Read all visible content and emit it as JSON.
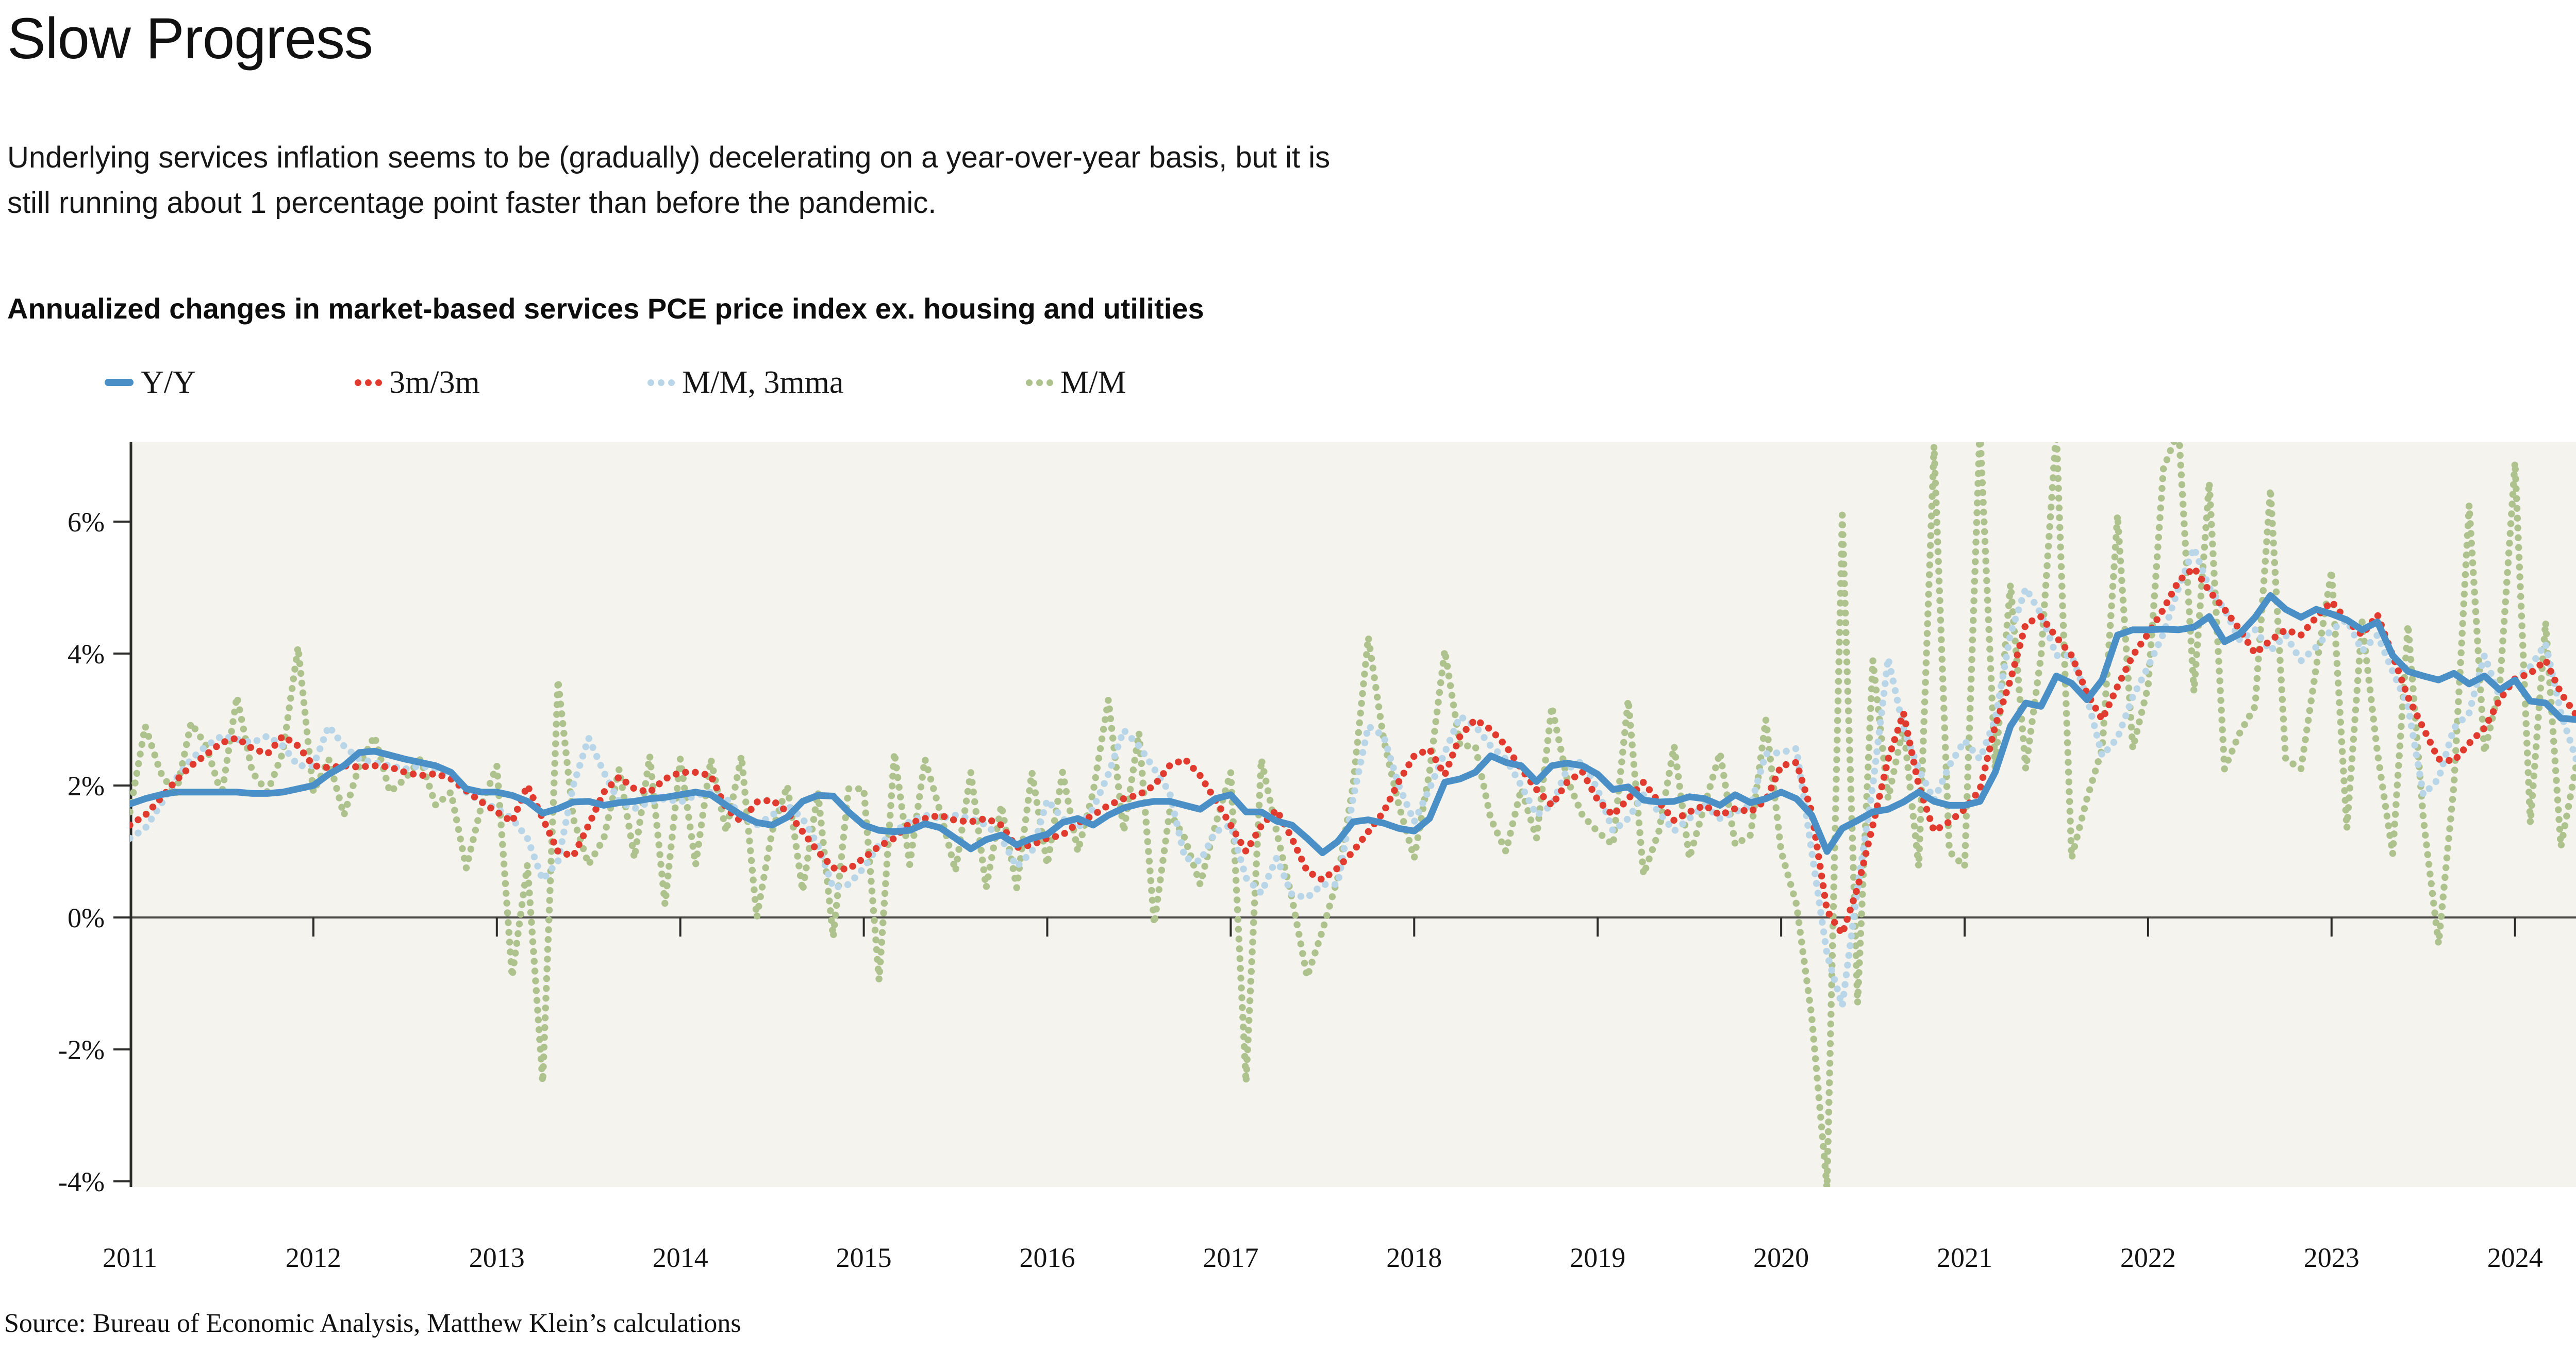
{
  "header": {
    "title": "Slow Progress",
    "subtitle_line1": "Underlying services inflation seems to be (gradually) decelerating on a year-over-year basis, but it is",
    "subtitle_line2": "still running about 1 percentage point faster than before the pandemic.",
    "chart_heading": "Annualized changes in market-based services PCE price index ex. housing and utilities"
  },
  "footer": {
    "source": "Source: Bureau of Economic Analysis, Matthew Klein’s calculations"
  },
  "colors": {
    "plot_background": "#f5f3ed",
    "axis": "#2b2b29",
    "zero_line": "#4a4a46",
    "yy_blue": "#4a90c6",
    "m3_red": "#e03b2e",
    "mm3mma_lightblue": "#b9d6e9",
    "mm_olive": "#aec28e"
  },
  "chart_data": {
    "type": "line",
    "title": "Annualized changes in market-based services PCE price index ex. housing and utilities",
    "x_start": "2011-01",
    "x_end": "2024-05",
    "months_per_point": 1,
    "x_tick_labels": [
      "2011",
      "2012",
      "2013",
      "2014",
      "2015",
      "2016",
      "2017",
      "2018",
      "2019",
      "2020",
      "2021",
      "2022",
      "2023",
      "2024"
    ],
    "y_tick_labels": [
      "6%",
      "4%",
      "2%",
      "0%",
      "-2%",
      "-4%"
    ],
    "y_tick_values": [
      6,
      4,
      2,
      0,
      -2,
      -4
    ],
    "ylim": [
      -4.09,
      7.2
    ],
    "grid": false,
    "legend_position": "top",
    "plot_bg": "#f5f3ed",
    "series": [
      {
        "name": "Y/Y",
        "color": "#4a90c6",
        "style": "solid",
        "values": [
          1.72,
          1.8,
          1.86,
          1.9,
          1.9,
          1.9,
          1.9,
          1.9,
          1.88,
          1.88,
          1.9,
          1.95,
          2.0,
          2.17,
          2.3,
          2.5,
          2.52,
          2.46,
          2.4,
          2.35,
          2.3,
          2.2,
          1.95,
          1.9,
          1.9,
          1.85,
          1.76,
          1.58,
          1.65,
          1.75,
          1.76,
          1.7,
          1.74,
          1.76,
          1.8,
          1.82,
          1.86,
          1.9,
          1.86,
          1.7,
          1.55,
          1.44,
          1.4,
          1.52,
          1.76,
          1.85,
          1.84,
          1.6,
          1.4,
          1.32,
          1.3,
          1.32,
          1.42,
          1.36,
          1.2,
          1.04,
          1.18,
          1.25,
          1.1,
          1.2,
          1.26,
          1.44,
          1.5,
          1.4,
          1.55,
          1.66,
          1.72,
          1.76,
          1.76,
          1.7,
          1.64,
          1.8,
          1.86,
          1.6,
          1.6,
          1.46,
          1.4,
          1.2,
          0.98,
          1.15,
          1.45,
          1.48,
          1.43,
          1.35,
          1.31,
          1.5,
          2.05,
          2.1,
          2.2,
          2.45,
          2.35,
          2.3,
          2.06,
          2.3,
          2.34,
          2.3,
          2.17,
          1.94,
          1.98,
          1.78,
          1.75,
          1.76,
          1.83,
          1.8,
          1.7,
          1.86,
          1.74,
          1.8,
          1.9,
          1.8,
          1.55,
          1.0,
          1.35,
          1.47,
          1.6,
          1.64,
          1.75,
          1.9,
          1.76,
          1.7,
          1.7,
          1.76,
          2.2,
          2.9,
          3.25,
          3.2,
          3.66,
          3.55,
          3.3,
          3.6,
          4.28,
          4.36,
          4.36,
          4.37,
          4.36,
          4.4,
          4.56,
          4.18,
          4.3,
          4.55,
          4.88,
          4.67,
          4.55,
          4.67,
          4.6,
          4.51,
          4.36,
          4.48,
          3.97,
          3.73,
          3.66,
          3.6,
          3.7,
          3.54,
          3.66,
          3.45,
          3.6,
          3.28,
          3.25,
          3.02,
          3.0
        ]
      },
      {
        "name": "3m/3m",
        "color": "#e03b2e",
        "style": "dotted",
        "values": [
          1.4,
          1.55,
          1.8,
          2.07,
          2.3,
          2.47,
          2.65,
          2.72,
          2.56,
          2.48,
          2.75,
          2.6,
          2.3,
          2.27,
          2.3,
          2.28,
          2.3,
          2.28,
          2.2,
          2.15,
          2.18,
          2.1,
          1.92,
          1.75,
          1.6,
          1.45,
          2.0,
          1.5,
          1.0,
          0.93,
          1.4,
          1.9,
          2.13,
          1.95,
          1.9,
          2.1,
          2.2,
          2.2,
          2.15,
          1.65,
          1.45,
          1.75,
          1.78,
          1.6,
          1.3,
          1.0,
          0.75,
          0.73,
          0.9,
          1.08,
          1.2,
          1.43,
          1.5,
          1.55,
          1.47,
          1.45,
          1.5,
          1.4,
          1.06,
          1.1,
          1.2,
          1.25,
          1.43,
          1.55,
          1.7,
          1.8,
          1.86,
          2.0,
          2.3,
          2.4,
          2.15,
          1.78,
          1.4,
          1.0,
          1.39,
          1.63,
          1.2,
          0.7,
          0.57,
          0.75,
          1.0,
          1.3,
          1.6,
          2.06,
          2.45,
          2.55,
          2.16,
          2.75,
          3.0,
          2.85,
          2.6,
          2.25,
          1.94,
          1.7,
          2.05,
          2.21,
          1.78,
          1.55,
          1.8,
          2.05,
          1.75,
          1.47,
          1.6,
          1.7,
          1.55,
          1.65,
          1.6,
          1.78,
          2.3,
          2.35,
          1.6,
          0.1,
          -0.25,
          0.45,
          1.4,
          2.4,
          3.1,
          2.0,
          1.31,
          1.45,
          1.64,
          1.94,
          2.9,
          3.6,
          4.45,
          4.56,
          4.25,
          3.97,
          3.4,
          3.0,
          3.5,
          3.97,
          4.3,
          4.67,
          5.1,
          5.3,
          4.95,
          4.67,
          4.36,
          4.0,
          4.2,
          4.36,
          4.28,
          4.55,
          4.79,
          4.5,
          4.28,
          4.59,
          3.97,
          3.34,
          2.87,
          2.4,
          2.37,
          2.64,
          2.87,
          3.3,
          3.62,
          3.7,
          3.9,
          3.4,
          3.07
        ]
      },
      {
        "name": "M/M, 3mma",
        "color": "#b9d6e9",
        "style": "dotted",
        "values": [
          1.2,
          1.35,
          1.7,
          2.1,
          2.4,
          2.6,
          2.75,
          2.7,
          2.65,
          2.75,
          2.6,
          2.3,
          2.3,
          2.9,
          2.6,
          2.4,
          2.35,
          2.3,
          2.25,
          2.3,
          2.25,
          2.1,
          1.9,
          1.75,
          1.65,
          1.5,
          1.2,
          0.57,
          0.85,
          2.0,
          2.72,
          2.2,
          1.75,
          1.65,
          1.75,
          1.8,
          1.75,
          1.85,
          1.9,
          1.8,
          1.55,
          1.4,
          1.55,
          1.7,
          1.5,
          1.1,
          0.45,
          0.5,
          0.75,
          1.1,
          1.3,
          1.45,
          1.55,
          1.5,
          1.55,
          1.5,
          1.4,
          1.2,
          0.77,
          1.0,
          1.78,
          1.5,
          1.35,
          1.65,
          2.17,
          2.84,
          2.6,
          2.25,
          1.9,
          0.9,
          0.85,
          1.3,
          1.4,
          0.6,
          0.37,
          0.9,
          0.35,
          0.3,
          0.5,
          0.5,
          1.8,
          2.9,
          2.75,
          2.0,
          1.45,
          1.95,
          2.5,
          3.05,
          2.9,
          2.6,
          2.4,
          2.0,
          1.55,
          1.7,
          2.25,
          2.37,
          1.94,
          1.31,
          1.5,
          1.86,
          1.6,
          1.31,
          1.5,
          1.7,
          1.5,
          1.6,
          1.7,
          2.48,
          2.5,
          2.56,
          1.0,
          -0.56,
          -1.34,
          0.45,
          2.0,
          3.93,
          2.87,
          2.25,
          1.78,
          2.3,
          2.68,
          2.4,
          3.0,
          4.3,
          4.99,
          4.6,
          3.97,
          3.97,
          3.34,
          2.45,
          2.72,
          3.34,
          3.8,
          4.3,
          5.0,
          5.6,
          5.0,
          4.67,
          4.2,
          4.36,
          4.04,
          4.28,
          3.89,
          4.1,
          4.36,
          4.51,
          4.04,
          4.28,
          3.73,
          3.2,
          1.86,
          2.1,
          2.87,
          3.1,
          3.97,
          3.34,
          3.6,
          3.8,
          4.15,
          3.1,
          2.4
        ]
      },
      {
        "name": "M/M",
        "color": "#aec28e",
        "style": "dotted",
        "values": [
          1.6,
          2.9,
          2.2,
          1.85,
          2.95,
          2.6,
          1.85,
          3.35,
          2.2,
          1.9,
          2.5,
          4.1,
          1.9,
          2.4,
          1.55,
          2.3,
          2.75,
          1.9,
          2.1,
          2.4,
          1.7,
          1.9,
          0.75,
          1.7,
          2.3,
          -0.9,
          0.8,
          -2.5,
          3.6,
          1.5,
          0.8,
          1.2,
          2.25,
          0.9,
          2.45,
          0.2,
          2.4,
          0.8,
          2.4,
          1.3,
          2.45,
          0.0,
          1.3,
          2.0,
          0.4,
          1.9,
          -0.3,
          1.95,
          1.95,
          -0.95,
          2.5,
          0.8,
          2.4,
          1.6,
          0.7,
          2.2,
          0.45,
          1.7,
          0.45,
          2.2,
          0.8,
          2.2,
          1.0,
          1.9,
          3.3,
          1.3,
          2.8,
          -0.1,
          1.6,
          1.2,
          0.5,
          1.4,
          2.2,
          -2.5,
          2.4,
          1.3,
          0.3,
          -0.9,
          -0.2,
          0.6,
          2.0,
          4.25,
          2.7,
          1.7,
          0.9,
          2.2,
          4.05,
          2.6,
          2.6,
          1.5,
          1.0,
          1.95,
          1.2,
          3.2,
          2.1,
          1.55,
          1.3,
          1.1,
          3.3,
          0.65,
          1.3,
          2.6,
          0.9,
          1.7,
          2.5,
          1.1,
          1.25,
          3.0,
          1.0,
          0.2,
          -1.5,
          -4.1,
          6.1,
          -1.3,
          3.9,
          1.8,
          2.9,
          0.77,
          7.15,
          1.0,
          0.77,
          7.4,
          2.25,
          5.05,
          2.25,
          3.97,
          7.4,
          0.9,
          1.8,
          2.56,
          6.1,
          2.56,
          3.5,
          6.8,
          7.4,
          3.42,
          6.6,
          2.25,
          2.8,
          3.2,
          6.5,
          2.4,
          2.25,
          3.8,
          5.26,
          1.35,
          4.48,
          2.5,
          0.96,
          4.44,
          1.5,
          -0.4,
          2.0,
          6.25,
          2.5,
          3.5,
          6.9,
          1.43,
          4.48,
          1.07,
          2.3
        ]
      }
    ]
  }
}
